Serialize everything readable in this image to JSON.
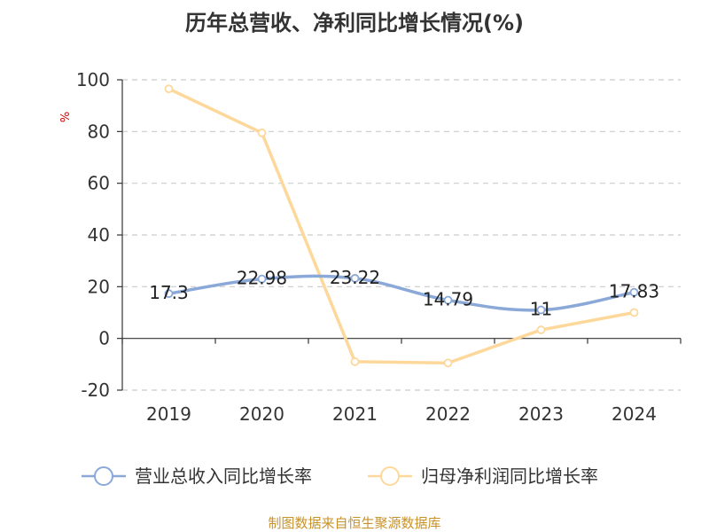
{
  "chart_data": {
    "type": "line",
    "title": "历年总营收、净利同比增长情况(%)",
    "ylabel": "%",
    "xlabel": "",
    "categories": [
      "2019",
      "2020",
      "2021",
      "2022",
      "2023",
      "2024"
    ],
    "yticks": [
      100,
      80,
      60,
      40,
      20,
      0,
      -20
    ],
    "ylim": [
      -20,
      100
    ],
    "grid": true,
    "legend_position": "bottom",
    "series": [
      {
        "name": "营业总收入同比增长率",
        "values": [
          17.3,
          22.98,
          23.22,
          14.79,
          11,
          17.83
        ],
        "labels": [
          "17.3",
          "22.98",
          "23.22",
          "14.79",
          "11",
          "17.83"
        ],
        "color": "#8aa8d8",
        "show_labels": true
      },
      {
        "name": "归母净利润同比增长率",
        "values": [
          96.5,
          79.5,
          -9,
          -9.5,
          3.3,
          10
        ],
        "color": "#fdd89a",
        "show_labels": false
      }
    ],
    "colors": {
      "unit": "#cc0000",
      "source": "#c8922a",
      "grid": "#cccccc",
      "axis": "#333333"
    }
  },
  "footer": {
    "source": "制图数据来自恒生聚源数据库"
  }
}
